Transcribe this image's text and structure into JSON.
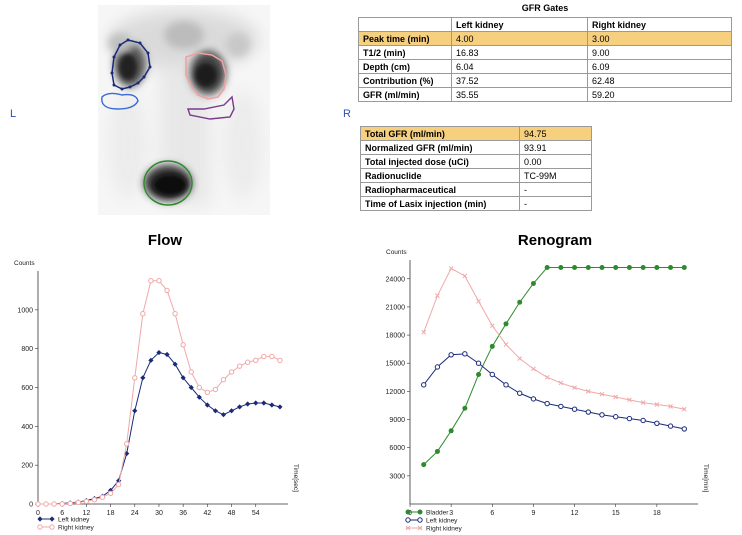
{
  "image_labels": {
    "left": "L",
    "right": "R"
  },
  "gfr_gates": {
    "title": "GFR Gates",
    "headers": [
      "",
      "Left kidney",
      "Right kidney"
    ],
    "rows": [
      [
        "Peak time (min)",
        "4.00",
        "3.00"
      ],
      [
        "T1/2  (min)",
        "16.83",
        "9.00"
      ],
      [
        "Depth (cm)",
        "6.04",
        "6.09"
      ],
      [
        "Contribution (%)",
        "37.52",
        "62.48"
      ],
      [
        "GFR (ml/min)",
        "35.55",
        "59.20"
      ]
    ]
  },
  "summary": {
    "rows": [
      [
        "Total GFR (ml/min)",
        "94.75"
      ],
      [
        "Normalized GFR  (ml/min)",
        "93.91"
      ],
      [
        "Total injected dose  (uCi)",
        "0.00"
      ],
      [
        "Radionuclide",
        "TC-99M"
      ],
      [
        "Radiopharmaceutical",
        "-"
      ],
      [
        "Time of Lasix injection (min)",
        "-"
      ]
    ]
  },
  "colors": {
    "left": "#1a2a78",
    "right": "#f0a8a8",
    "bladder": "#2d8a2d",
    "highlight": "#f6cf7f"
  },
  "chart_data": [
    {
      "type": "line",
      "title": "Flow",
      "ylabel": "Counts",
      "xlabel": "Time[sec]",
      "xlim": [
        0,
        62
      ],
      "ylim": [
        0,
        1200
      ],
      "xticks": [
        0,
        6,
        12,
        18,
        24,
        30,
        36,
        42,
        48,
        54
      ],
      "yticks": [
        0,
        200,
        400,
        600,
        800,
        1000
      ],
      "series": [
        {
          "name": "Left kidney",
          "color": "#1a2a78",
          "marker": "diamond",
          "x": [
            0,
            2,
            4,
            6,
            8,
            10,
            12,
            14,
            16,
            18,
            20,
            22,
            24,
            26,
            28,
            30,
            32,
            34,
            36,
            38,
            40,
            42,
            44,
            46,
            48,
            50,
            52,
            54,
            56,
            58,
            60
          ],
          "y": [
            0,
            0,
            0,
            3,
            6,
            10,
            18,
            28,
            40,
            70,
            120,
            260,
            480,
            650,
            740,
            780,
            770,
            720,
            650,
            600,
            550,
            510,
            480,
            460,
            480,
            500,
            515,
            520,
            520,
            510,
            500
          ]
        },
        {
          "name": "Right kidney",
          "color": "#f0a8a8",
          "marker": "circle",
          "x": [
            0,
            2,
            4,
            6,
            8,
            10,
            12,
            14,
            16,
            18,
            20,
            22,
            24,
            26,
            28,
            30,
            32,
            34,
            36,
            38,
            40,
            42,
            44,
            46,
            48,
            50,
            52,
            54,
            56,
            58,
            60
          ],
          "y": [
            0,
            0,
            0,
            0,
            3,
            8,
            14,
            22,
            35,
            55,
            100,
            310,
            650,
            980,
            1150,
            1150,
            1100,
            980,
            820,
            680,
            600,
            575,
            590,
            640,
            680,
            710,
            730,
            740,
            760,
            760,
            740
          ]
        }
      ]
    },
    {
      "type": "line",
      "title": "Renogram",
      "ylabel": "Counts",
      "xlabel": "Time[min]",
      "xlim": [
        0,
        21
      ],
      "ylim": [
        0,
        26000
      ],
      "xticks": [
        0,
        3,
        6,
        9,
        12,
        15,
        18
      ],
      "yticks": [
        3000,
        6000,
        9000,
        12000,
        15000,
        18000,
        21000,
        24000
      ],
      "series": [
        {
          "name": "Bladder",
          "color": "#2d8a2d",
          "marker": "filled-circle",
          "x": [
            1,
            2,
            3,
            4,
            5,
            6,
            7,
            8,
            9,
            10,
            11,
            12,
            13,
            14,
            15,
            16,
            17,
            18,
            19,
            20
          ],
          "y": [
            4200,
            5600,
            7800,
            10200,
            13800,
            16800,
            19200,
            21500,
            23500,
            25200,
            25200,
            25200,
            25200,
            25200,
            25200,
            25200,
            25200,
            25200,
            25200,
            25200
          ]
        },
        {
          "name": "Left kidney",
          "color": "#1a2a78",
          "marker": "circle",
          "x": [
            1,
            2,
            3,
            4,
            5,
            6,
            7,
            8,
            9,
            10,
            11,
            12,
            13,
            14,
            15,
            16,
            17,
            18,
            19,
            20
          ],
          "y": [
            12700,
            14600,
            15900,
            16000,
            15000,
            13800,
            12700,
            11800,
            11200,
            10700,
            10400,
            10100,
            9800,
            9500,
            9300,
            9100,
            8900,
            8600,
            8300,
            8000
          ]
        },
        {
          "name": "Right kidney",
          "color": "#f0a8a8",
          "marker": "x",
          "x": [
            1,
            2,
            3,
            4,
            5,
            6,
            7,
            8,
            9,
            10,
            11,
            12,
            13,
            14,
            15,
            16,
            17,
            18,
            19,
            20
          ],
          "y": [
            18300,
            22200,
            25100,
            24300,
            21600,
            19000,
            17000,
            15500,
            14400,
            13500,
            12900,
            12400,
            12000,
            11700,
            11400,
            11100,
            10800,
            10600,
            10400,
            10100
          ]
        }
      ]
    }
  ]
}
